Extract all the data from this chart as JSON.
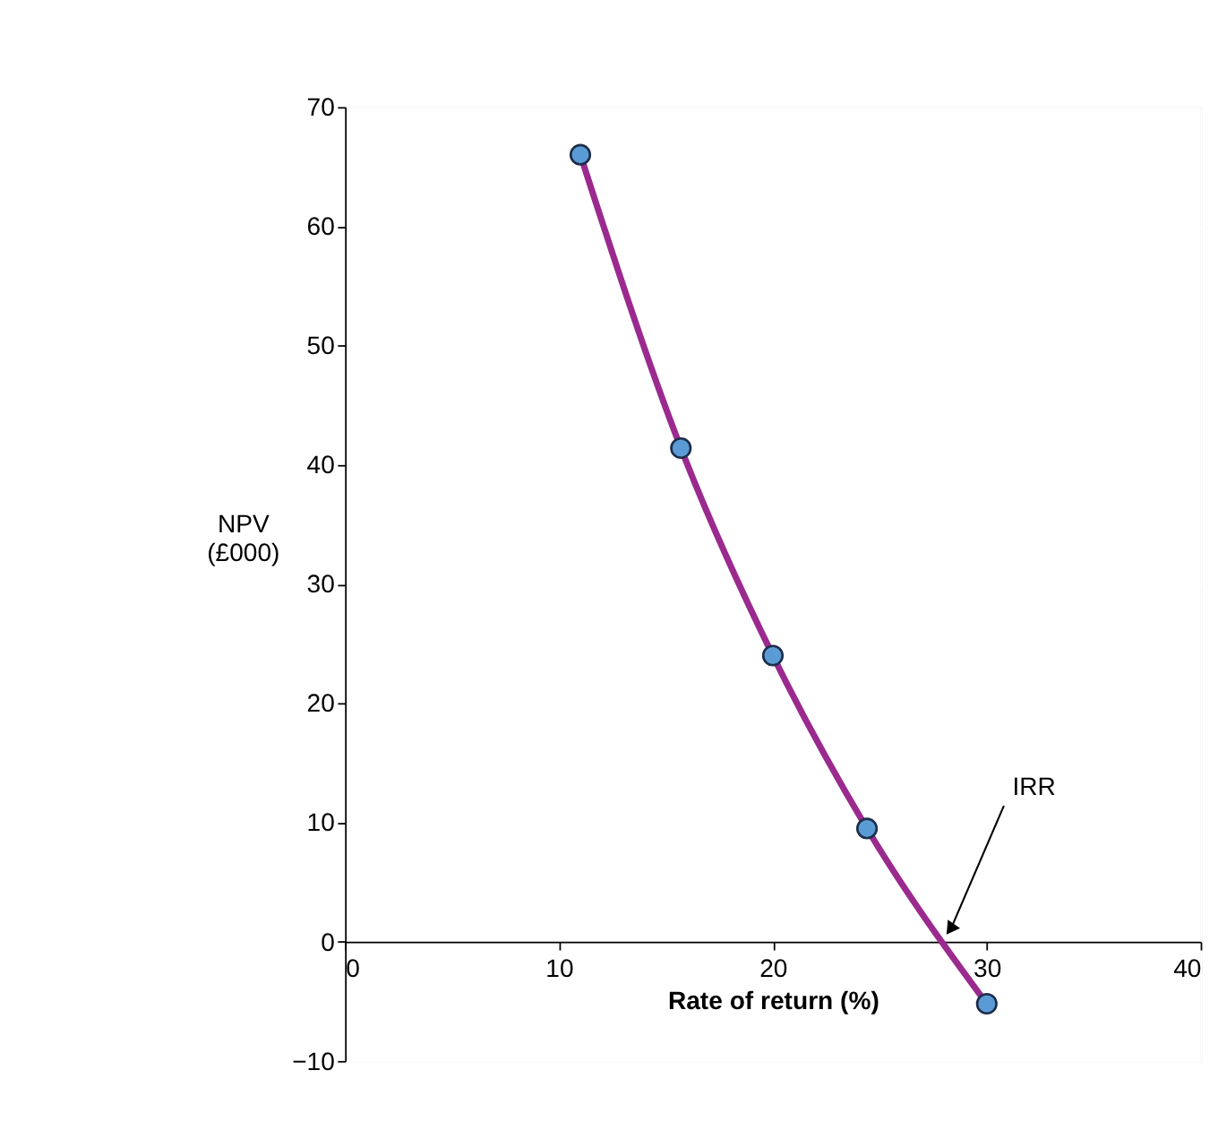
{
  "chart_data": {
    "type": "line",
    "xlabel": "Rate of return (%)",
    "ylabel": "NPV\n(£000)",
    "x": [
      11,
      15.7,
      20,
      24.4,
      30
    ],
    "series": [
      {
        "color": "#9b2a8f",
        "values": [
          66,
          41.4,
          24,
          9.5,
          -5.2
        ]
      }
    ],
    "marker": "circle",
    "xlim": [
      0,
      40
    ],
    "xticks": [
      0,
      10,
      20,
      30,
      40
    ],
    "ylim": [
      -10,
      70
    ],
    "yticks": [
      -10,
      0,
      10,
      20,
      30,
      40,
      50,
      60,
      70
    ],
    "grid": true,
    "annotations": [
      {
        "text": "IRR",
        "x": 28.2,
        "y": 0
      }
    ]
  }
}
